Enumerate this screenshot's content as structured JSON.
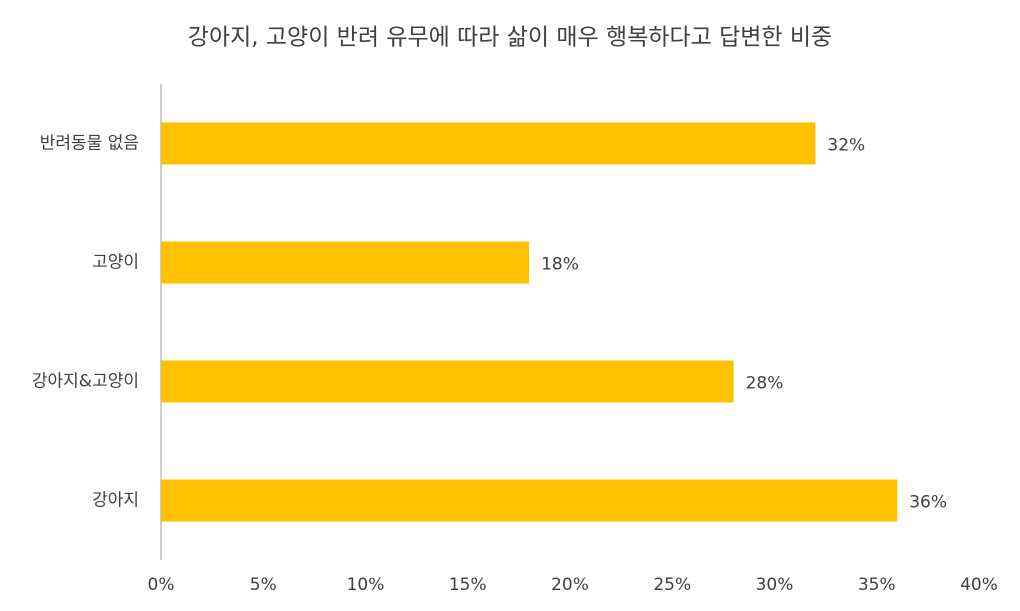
{
  "chart_data": {
    "type": "bar",
    "orientation": "horizontal",
    "title": "강아지, 고양이 반려 유무에 따라 삶이 매우 행복하다고 답변한 비중",
    "categories": [
      "반려동물 없음",
      "고양이",
      "강아지&고양이",
      "강아지"
    ],
    "values": [
      32,
      18,
      28,
      36
    ],
    "value_labels": [
      "32%",
      "18%",
      "28%",
      "36%"
    ],
    "color": "#FFC000",
    "xlim": [
      0,
      40
    ],
    "xticks": [
      {
        "value": 0,
        "label": "0%"
      },
      {
        "value": 5,
        "label": "5%"
      },
      {
        "value": 10,
        "label": "10%"
      },
      {
        "value": 15,
        "label": "15%"
      },
      {
        "value": 20,
        "label": "20%"
      },
      {
        "value": 25,
        "label": "25%"
      },
      {
        "value": 30,
        "label": "30%"
      },
      {
        "value": 35,
        "label": "35%"
      },
      {
        "value": 40,
        "label": "40%"
      }
    ],
    "grid": false
  }
}
